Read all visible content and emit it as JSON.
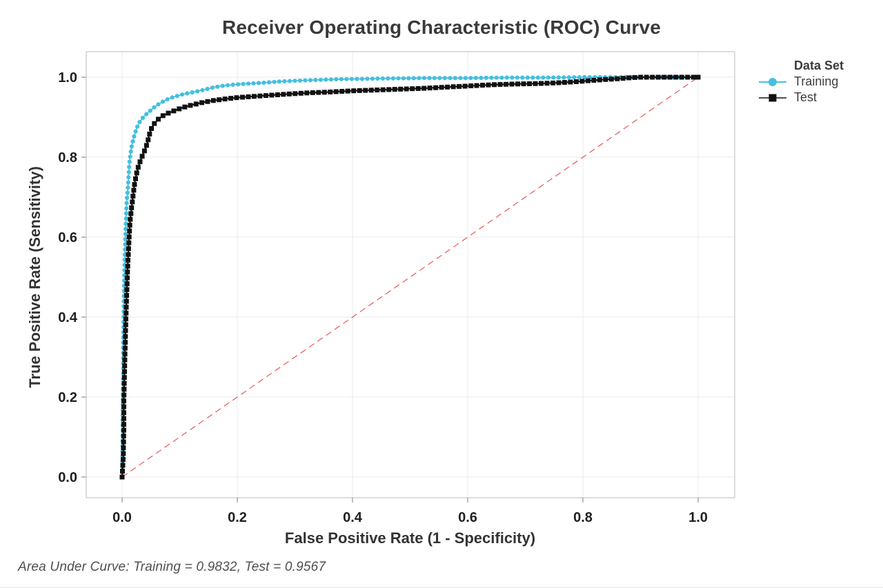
{
  "chart_data": {
    "type": "line",
    "title": "Receiver Operating Characteristic (ROC) Curve",
    "xlabel": "False Positive Rate (1 - Specificity)",
    "ylabel": "True Positive Rate (Sensitivity)",
    "xlim": [
      0.0,
      1.0
    ],
    "ylim": [
      0.0,
      1.0
    ],
    "xticks": [
      "0.0",
      "0.2",
      "0.4",
      "0.6",
      "0.8",
      "1.0"
    ],
    "yticks": [
      "0.0",
      "0.2",
      "0.4",
      "0.6",
      "0.8",
      "1.0"
    ],
    "tick_values": [
      0.0,
      0.2,
      0.4,
      0.6,
      0.8,
      1.0
    ],
    "grid": true,
    "legend_position": "right",
    "legend_title": "Data Set",
    "annotation": "Area Under Curve: Training = 0.9832, Test = 0.9567",
    "reference_line": {
      "name": "chance-diagonal",
      "from": [
        0,
        0
      ],
      "to": [
        1,
        1
      ],
      "color": "#e96060",
      "style": "dashed"
    },
    "colors": {
      "grid": "#ebebeb",
      "frame": "#c6c6c6",
      "tick": "#929292",
      "tick_label": "#1f1f1f",
      "axis_label": "#333333"
    },
    "series": [
      {
        "name": "Training",
        "marker": "circle",
        "color": "#45bfe0",
        "auc": 0.9832,
        "points": [
          [
            0.0,
            0.0
          ],
          [
            0.001,
            0.06
          ],
          [
            0.001,
            0.15
          ],
          [
            0.002,
            0.24
          ],
          [
            0.002,
            0.33
          ],
          [
            0.003,
            0.42
          ],
          [
            0.004,
            0.5
          ],
          [
            0.005,
            0.56
          ],
          [
            0.006,
            0.615
          ],
          [
            0.007,
            0.655
          ],
          [
            0.008,
            0.69
          ],
          [
            0.01,
            0.72
          ],
          [
            0.011,
            0.745
          ],
          [
            0.012,
            0.77
          ],
          [
            0.013,
            0.79
          ],
          [
            0.015,
            0.812
          ],
          [
            0.017,
            0.83
          ],
          [
            0.02,
            0.848
          ],
          [
            0.023,
            0.862
          ],
          [
            0.026,
            0.875
          ],
          [
            0.03,
            0.887
          ],
          [
            0.035,
            0.897
          ],
          [
            0.041,
            0.906
          ],
          [
            0.048,
            0.915
          ],
          [
            0.055,
            0.924
          ],
          [
            0.063,
            0.932
          ],
          [
            0.072,
            0.94
          ],
          [
            0.082,
            0.947
          ],
          [
            0.093,
            0.952
          ],
          [
            0.105,
            0.957
          ],
          [
            0.118,
            0.961
          ],
          [
            0.132,
            0.965
          ],
          [
            0.146,
            0.97
          ],
          [
            0.16,
            0.975
          ],
          [
            0.178,
            0.979
          ],
          [
            0.198,
            0.982
          ],
          [
            0.22,
            0.984
          ],
          [
            0.245,
            0.986
          ],
          [
            0.27,
            0.989
          ],
          [
            0.3,
            0.991
          ],
          [
            0.335,
            0.993
          ],
          [
            0.375,
            0.995
          ],
          [
            0.42,
            0.996
          ],
          [
            0.47,
            0.997
          ],
          [
            0.53,
            0.998
          ],
          [
            0.6,
            0.998
          ],
          [
            0.67,
            0.999
          ],
          [
            0.74,
            0.999
          ],
          [
            0.8,
            1.0
          ],
          [
            0.88,
            1.0
          ],
          [
            1.0,
            1.0
          ]
        ]
      },
      {
        "name": "Test",
        "marker": "square",
        "color": "#111111",
        "auc": 0.9567,
        "points": [
          [
            0.0,
            0.0
          ],
          [
            0.002,
            0.05
          ],
          [
            0.003,
            0.12
          ],
          [
            0.003,
            0.19
          ],
          [
            0.004,
            0.25
          ],
          [
            0.005,
            0.31
          ],
          [
            0.006,
            0.365
          ],
          [
            0.007,
            0.415
          ],
          [
            0.008,
            0.46
          ],
          [
            0.009,
            0.5
          ],
          [
            0.01,
            0.535
          ],
          [
            0.011,
            0.565
          ],
          [
            0.012,
            0.595
          ],
          [
            0.013,
            0.62
          ],
          [
            0.014,
            0.643
          ],
          [
            0.016,
            0.668
          ],
          [
            0.018,
            0.692
          ],
          [
            0.02,
            0.715
          ],
          [
            0.022,
            0.737
          ],
          [
            0.025,
            0.758
          ],
          [
            0.028,
            0.775
          ],
          [
            0.032,
            0.792
          ],
          [
            0.036,
            0.806
          ],
          [
            0.04,
            0.82
          ],
          [
            0.044,
            0.836
          ],
          [
            0.047,
            0.855
          ],
          [
            0.051,
            0.872
          ],
          [
            0.056,
            0.884
          ],
          [
            0.062,
            0.894
          ],
          [
            0.07,
            0.903
          ],
          [
            0.08,
            0.91
          ],
          [
            0.092,
            0.917
          ],
          [
            0.105,
            0.924
          ],
          [
            0.12,
            0.93
          ],
          [
            0.137,
            0.936
          ],
          [
            0.155,
            0.941
          ],
          [
            0.175,
            0.945
          ],
          [
            0.2,
            0.949
          ],
          [
            0.228,
            0.952
          ],
          [
            0.258,
            0.955
          ],
          [
            0.29,
            0.958
          ],
          [
            0.325,
            0.961
          ],
          [
            0.36,
            0.963
          ],
          [
            0.4,
            0.966
          ],
          [
            0.44,
            0.968
          ],
          [
            0.48,
            0.97
          ],
          [
            0.52,
            0.972
          ],
          [
            0.56,
            0.975
          ],
          [
            0.6,
            0.978
          ],
          [
            0.64,
            0.981
          ],
          [
            0.68,
            0.983
          ],
          [
            0.72,
            0.984
          ],
          [
            0.755,
            0.986
          ],
          [
            0.79,
            0.989
          ],
          [
            0.825,
            0.993
          ],
          [
            0.86,
            0.996
          ],
          [
            0.885,
            0.999
          ],
          [
            0.9,
            1.0
          ],
          [
            1.0,
            1.0
          ]
        ]
      }
    ]
  }
}
